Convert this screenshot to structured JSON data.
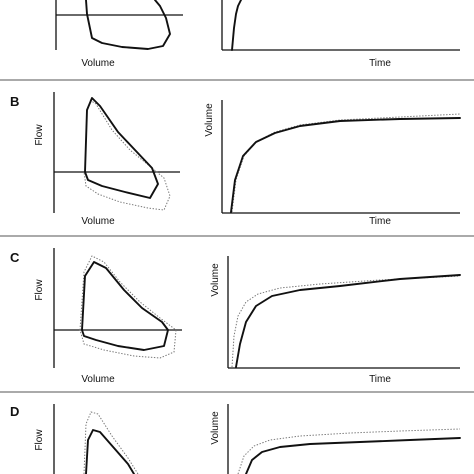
{
  "figure": {
    "ink_color": "#111111",
    "dotted_color": "#777777",
    "panels": [
      {
        "id": "A",
        "letter": "",
        "loop_xlabel": "Volume",
        "loop_ylabel": "",
        "curve_xlabel": "Time",
        "curve_ylabel": ""
      },
      {
        "id": "B",
        "letter": "B",
        "loop_xlabel": "Volume",
        "loop_ylabel": "Flow",
        "curve_xlabel": "Time",
        "curve_ylabel": "Volume"
      },
      {
        "id": "C",
        "letter": "C",
        "loop_xlabel": "Volume",
        "loop_ylabel": "Flow",
        "curve_xlabel": "Time",
        "curve_ylabel": "Volume"
      },
      {
        "id": "D",
        "letter": "D",
        "loop_xlabel": "",
        "loop_ylabel": "Flow",
        "curve_xlabel": "",
        "curve_ylabel": "Volume"
      }
    ]
  }
}
